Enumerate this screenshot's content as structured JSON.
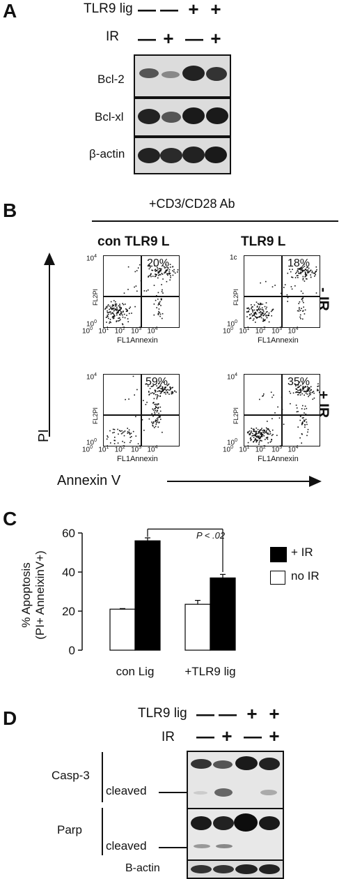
{
  "panel_a": {
    "label": "A",
    "row_labels": [
      "TLR9 lig",
      "IR"
    ],
    "tlr9_signs": [
      "—",
      "—",
      "+",
      "+"
    ],
    "ir_signs": [
      "—",
      "+",
      "—",
      "+"
    ],
    "blots": [
      "Bcl-2",
      "Bcl-xl",
      "β-actin"
    ]
  },
  "panel_b": {
    "label": "B",
    "header": "+CD3/CD28 Ab",
    "col_titles": [
      "con TLR9 L",
      "TLR9 L"
    ],
    "row_titles": [
      "- IR",
      "+ IR"
    ],
    "y_axis": "PI",
    "x_axis": "Annexin V",
    "plot_ylabel": "FL2PI",
    "plot_xlabel": "FL1Annexin",
    "percents": [
      "20%",
      "18%",
      "59%",
      "35%"
    ],
    "ytick_top_left": "10",
    "ytick_top_right": "1c",
    "ytick_bottom": "10",
    "xticks": [
      "10",
      "10",
      "10",
      "10",
      "10"
    ],
    "xtick_exps": [
      "0",
      "1",
      "2",
      "3",
      "4"
    ],
    "ytop_exp": "4",
    "ybot_exp": "0"
  },
  "panel_c": {
    "label": "C",
    "pvalue": "P < .02",
    "legend": [
      "+ IR",
      "no IR"
    ]
  },
  "chart_data": {
    "type": "bar",
    "categories": [
      "con Lig",
      "+TLR9 lig"
    ],
    "series": [
      {
        "name": "no IR",
        "values": [
          21,
          23.5
        ],
        "errors": [
          0.3,
          2
        ]
      },
      {
        "name": "+ IR",
        "values": [
          56,
          37
        ],
        "errors": [
          1.5,
          1.8
        ]
      }
    ],
    "ylabel": "% Apoptosis (PI+ AnneixinV+)",
    "ylabel_lines": [
      "% Apoptosis",
      "(PI+ AnneixinV+)"
    ],
    "yticks": [
      "0",
      "20",
      "40",
      "60"
    ],
    "ylim": [
      0,
      60
    ]
  },
  "panel_d": {
    "label": "D",
    "row_labels": [
      "TLR9 lig",
      "IR"
    ],
    "tlr9_signs": [
      "—",
      "—",
      "+",
      "+"
    ],
    "ir_signs": [
      "—",
      "+",
      "—",
      "+"
    ],
    "protein_labels": [
      "Casp-3",
      "Parp"
    ],
    "cleaved": "cleaved",
    "bactin": "B-actin"
  }
}
